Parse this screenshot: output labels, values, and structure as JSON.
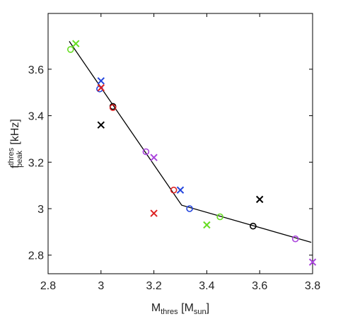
{
  "chart_data": {
    "type": "scatter",
    "xlabel": {
      "main": "M",
      "sub1": "thres",
      "bracket_open": " [M",
      "sub2": "sun",
      "bracket_close": "]"
    },
    "ylabel": {
      "main": "f",
      "sup": "thres",
      "sub": "peak",
      "rest": " [kHz]"
    },
    "xlim": [
      2.8,
      3.8
    ],
    "ylim": [
      2.72,
      3.84
    ],
    "xticks": [
      2.8,
      3,
      3.2,
      3.4,
      3.6,
      3.8
    ],
    "xtick_labels": [
      "2.8",
      "3",
      "3.2",
      "3.4",
      "3.6",
      "3.8"
    ],
    "yticks": [
      2.8,
      3,
      3.2,
      3.4,
      3.6
    ],
    "ytick_labels": [
      "2.8",
      "3",
      "3.2",
      "3.4",
      "3.6"
    ],
    "grid": false,
    "fit_line": {
      "x": [
        2.88,
        3.305,
        3.795
      ],
      "y": [
        3.72,
        3.015,
        2.855
      ],
      "color": "#000000"
    },
    "circles": [
      {
        "x": 2.885,
        "y": 3.685,
        "color": "#66dd22"
      },
      {
        "x": 2.995,
        "y": 3.515,
        "color": "#2244dd"
      },
      {
        "x": 3.045,
        "y": 3.44,
        "color": "#000000"
      },
      {
        "x": 3.045,
        "y": 3.435,
        "color": "#dd2222"
      },
      {
        "x": 3.17,
        "y": 3.245,
        "color": "#aa44dd"
      },
      {
        "x": 3.275,
        "y": 3.08,
        "color": "#dd2222"
      },
      {
        "x": 3.335,
        "y": 3.0,
        "color": "#2244dd"
      },
      {
        "x": 3.45,
        "y": 2.965,
        "color": "#66dd22"
      },
      {
        "x": 3.575,
        "y": 2.925,
        "color": "#000000"
      },
      {
        "x": 3.735,
        "y": 2.87,
        "color": "#aa44dd"
      }
    ],
    "crosses": [
      {
        "x": 2.905,
        "y": 3.71,
        "color": "#66dd22"
      },
      {
        "x": 3.0,
        "y": 3.55,
        "color": "#2244dd"
      },
      {
        "x": 3.0,
        "y": 3.52,
        "color": "#dd2222"
      },
      {
        "x": 3.0,
        "y": 3.36,
        "color": "#000000"
      },
      {
        "x": 3.2,
        "y": 3.22,
        "color": "#aa44dd"
      },
      {
        "x": 3.2,
        "y": 2.98,
        "color": "#dd2222"
      },
      {
        "x": 3.3,
        "y": 3.08,
        "color": "#2244dd"
      },
      {
        "x": 3.4,
        "y": 2.93,
        "color": "#66dd22"
      },
      {
        "x": 3.6,
        "y": 3.04,
        "color": "#000000"
      },
      {
        "x": 3.8,
        "y": 2.77,
        "color": "#aa44dd"
      }
    ]
  }
}
